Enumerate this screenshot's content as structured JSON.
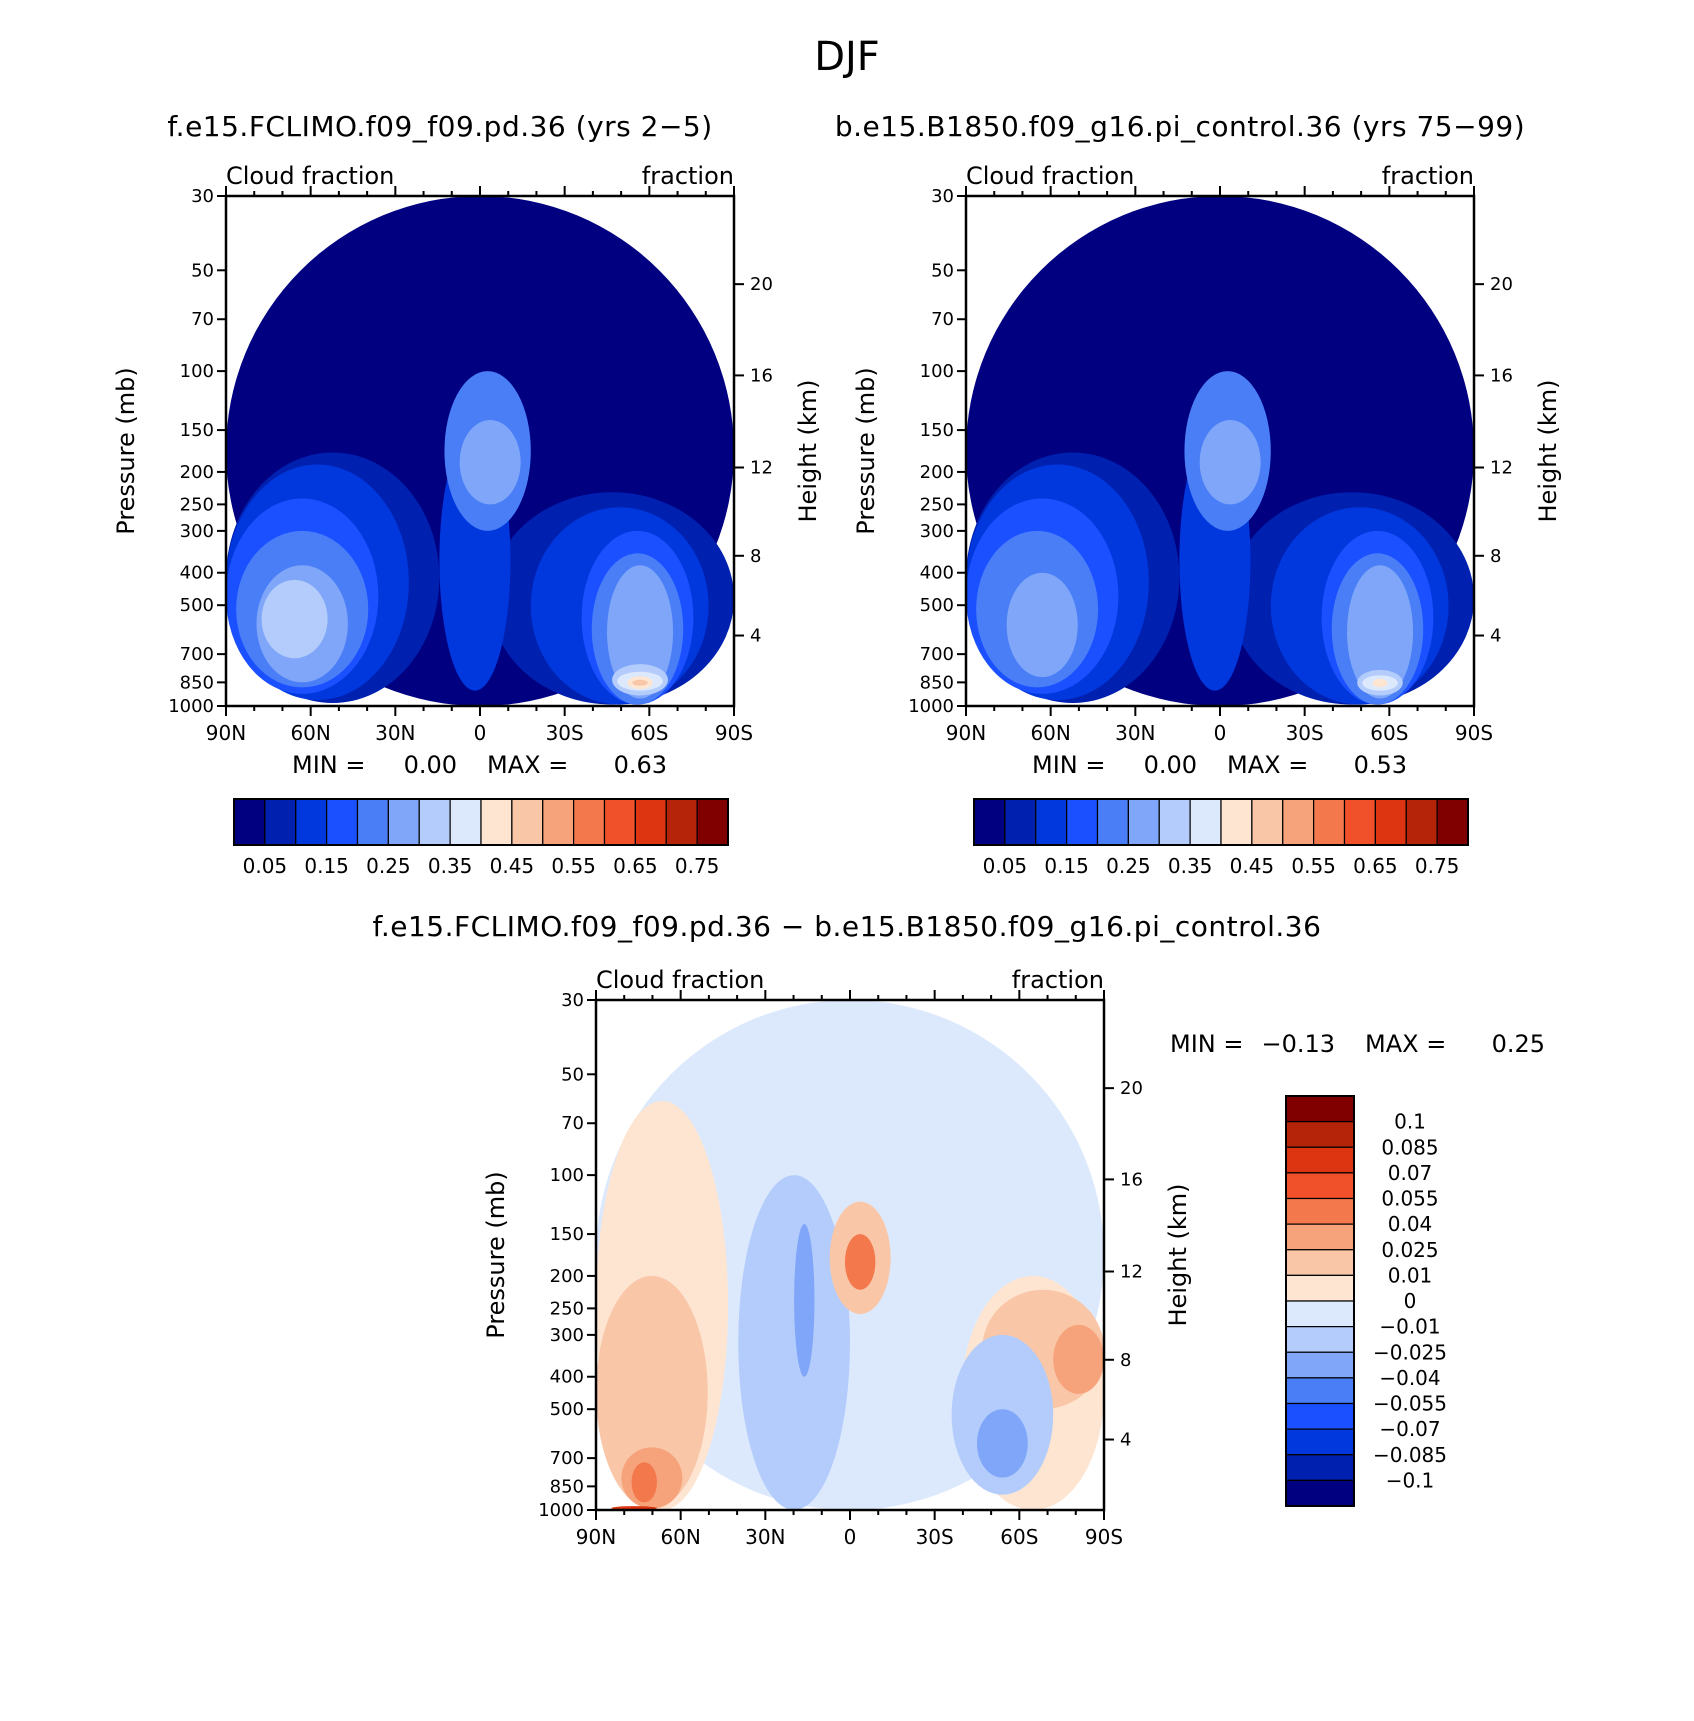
{
  "chart_data": {
    "type": "contour",
    "title": "DJF",
    "panels": [
      {
        "id": "left",
        "title": "f.e15.FCLIMO.f09_f09.pd.36 (yrs 2−5)",
        "left_label": "Cloud fraction",
        "right_label": "fraction",
        "ylabel": "Pressure (mb)",
        "ylabel_right": "Height (km)",
        "stats": {
          "min_label": "MIN =",
          "min": "0.00",
          "max_label": "MAX =",
          "max": "0.63"
        },
        "bands": [
          {
            "cat": 0,
            "p_top": 30,
            "p_bot": 1000,
            "lat0": 0,
            "lat1": 1
          },
          {
            "cat": 1,
            "p_top": 175,
            "p_bot": 980,
            "lat0": 0,
            "lat1": 0.42
          },
          {
            "cat": 1,
            "p_top": 230,
            "p_bot": 990,
            "lat0": 0.52,
            "lat1": 1
          },
          {
            "cat": 2,
            "p_top": 190,
            "p_bot": 960,
            "lat0": 0,
            "lat1": 0.36
          },
          {
            "cat": 2,
            "p_top": 150,
            "p_bot": 900,
            "lat0": 0.42,
            "lat1": 0.56
          },
          {
            "cat": 2,
            "p_top": 255,
            "p_bot": 990,
            "lat0": 0.6,
            "lat1": 0.95
          },
          {
            "cat": 3,
            "p_top": 240,
            "p_bot": 920,
            "lat0": 0,
            "lat1": 0.3
          },
          {
            "cat": 3,
            "p_top": 300,
            "p_bot": 990,
            "lat0": 0.7,
            "lat1": 0.92
          },
          {
            "cat": 4,
            "p_top": 300,
            "p_bot": 880,
            "lat0": 0.02,
            "lat1": 0.28
          },
          {
            "cat": 4,
            "p_top": 350,
            "p_bot": 990,
            "lat0": 0.72,
            "lat1": 0.9
          },
          {
            "cat": 5,
            "p_top": 380,
            "p_bot": 850,
            "lat0": 0.06,
            "lat1": 0.24
          },
          {
            "cat": 5,
            "p_top": 380,
            "p_bot": 950,
            "lat0": 0.75,
            "lat1": 0.88
          },
          {
            "cat": 6,
            "p_top": 420,
            "p_bot": 720,
            "lat0": 0.07,
            "lat1": 0.2
          },
          {
            "cat": 6,
            "p_top": 750,
            "p_bot": 930,
            "lat0": 0.76,
            "lat1": 0.87
          },
          {
            "cat": 7,
            "p_top": 790,
            "p_bot": 900,
            "lat0": 0.77,
            "lat1": 0.86
          },
          {
            "cat": 8,
            "p_top": 815,
            "p_bot": 890,
            "lat0": 0.79,
            "lat1": 0.84
          },
          {
            "cat": 9,
            "p_top": 835,
            "p_bot": 870,
            "lat0": 0.8,
            "lat1": 0.83
          },
          {
            "cat": 4,
            "p_top": 100,
            "p_bot": 300,
            "lat0": 0.43,
            "lat1": 0.6
          },
          {
            "cat": 5,
            "p_top": 140,
            "p_bot": 250,
            "lat0": 0.46,
            "lat1": 0.58
          }
        ]
      },
      {
        "id": "right",
        "title": "b.e15.B1850.f09_g16.pi_control.36 (yrs 75−99)",
        "left_label": "Cloud fraction",
        "right_label": "fraction",
        "ylabel": "Pressure (mb)",
        "ylabel_right": "Height (km)",
        "stats": {
          "min_label": "MIN =",
          "min": "0.00",
          "max_label": "MAX =",
          "max": "0.53"
        },
        "bands": [
          {
            "cat": 0,
            "p_top": 30,
            "p_bot": 1000,
            "lat0": 0,
            "lat1": 1
          },
          {
            "cat": 1,
            "p_top": 175,
            "p_bot": 980,
            "lat0": 0,
            "lat1": 0.42
          },
          {
            "cat": 1,
            "p_top": 230,
            "p_bot": 990,
            "lat0": 0.52,
            "lat1": 1
          },
          {
            "cat": 2,
            "p_top": 190,
            "p_bot": 960,
            "lat0": 0,
            "lat1": 0.36
          },
          {
            "cat": 2,
            "p_top": 150,
            "p_bot": 900,
            "lat0": 0.42,
            "lat1": 0.56
          },
          {
            "cat": 2,
            "p_top": 255,
            "p_bot": 990,
            "lat0": 0.6,
            "lat1": 0.95
          },
          {
            "cat": 3,
            "p_top": 240,
            "p_bot": 920,
            "lat0": 0,
            "lat1": 0.3
          },
          {
            "cat": 3,
            "p_top": 300,
            "p_bot": 990,
            "lat0": 0.7,
            "lat1": 0.92
          },
          {
            "cat": 4,
            "p_top": 300,
            "p_bot": 880,
            "lat0": 0.02,
            "lat1": 0.26
          },
          {
            "cat": 4,
            "p_top": 350,
            "p_bot": 990,
            "lat0": 0.72,
            "lat1": 0.9
          },
          {
            "cat": 5,
            "p_top": 400,
            "p_bot": 820,
            "lat0": 0.08,
            "lat1": 0.22
          },
          {
            "cat": 5,
            "p_top": 380,
            "p_bot": 950,
            "lat0": 0.75,
            "lat1": 0.88
          },
          {
            "cat": 6,
            "p_top": 780,
            "p_bot": 930,
            "lat0": 0.77,
            "lat1": 0.86
          },
          {
            "cat": 7,
            "p_top": 810,
            "p_bot": 900,
            "lat0": 0.78,
            "lat1": 0.85
          },
          {
            "cat": 8,
            "p_top": 830,
            "p_bot": 880,
            "lat0": 0.8,
            "lat1": 0.83
          },
          {
            "cat": 4,
            "p_top": 100,
            "p_bot": 300,
            "lat0": 0.43,
            "lat1": 0.6
          },
          {
            "cat": 5,
            "p_top": 140,
            "p_bot": 250,
            "lat0": 0.46,
            "lat1": 0.58
          }
        ]
      },
      {
        "id": "diff",
        "title": "f.e15.FCLIMO.f09_f09.pd.36 − b.e15.B1850.f09_g16.pi_control.36",
        "left_label": "Cloud fraction",
        "right_label": "fraction",
        "ylabel": "Pressure (mb)",
        "ylabel_right": "Height (km)",
        "stats": {
          "min_label": "MIN =",
          "min": "−0.13",
          "max_label": "MAX =",
          "max": "0.25"
        },
        "bands": [
          {
            "cat": 7,
            "p_top": 30,
            "p_bot": 1000,
            "lat0": 0,
            "lat1": 1
          },
          {
            "cat": 8,
            "p_top": 60,
            "p_bot": 1000,
            "lat0": 0,
            "lat1": 0.26
          },
          {
            "cat": 8,
            "p_top": 200,
            "p_bot": 1000,
            "lat0": 0.72,
            "lat1": 1
          },
          {
            "cat": 9,
            "p_top": 200,
            "p_bot": 990,
            "lat0": 0,
            "lat1": 0.22
          },
          {
            "cat": 9,
            "p_top": 220,
            "p_bot": 500,
            "lat0": 0.76,
            "lat1": 1
          },
          {
            "cat": 10,
            "p_top": 650,
            "p_bot": 990,
            "lat0": 0.05,
            "lat1": 0.17
          },
          {
            "cat": 10,
            "p_top": 280,
            "p_bot": 450,
            "lat0": 0.9,
            "lat1": 1
          },
          {
            "cat": 6,
            "p_top": 100,
            "p_bot": 1000,
            "lat0": 0.28,
            "lat1": 0.5
          },
          {
            "cat": 5,
            "p_top": 140,
            "p_bot": 400,
            "lat0": 0.39,
            "lat1": 0.43
          },
          {
            "cat": 6,
            "p_top": 300,
            "p_bot": 900,
            "lat0": 0.7,
            "lat1": 0.9
          },
          {
            "cat": 5,
            "p_top": 500,
            "p_bot": 800,
            "lat0": 0.75,
            "lat1": 0.85
          },
          {
            "cat": 9,
            "p_top": 120,
            "p_bot": 260,
            "lat0": 0.46,
            "lat1": 0.58
          },
          {
            "cat": 11,
            "p_top": 150,
            "p_bot": 220,
            "lat0": 0.49,
            "lat1": 0.55
          },
          {
            "cat": 11,
            "p_top": 720,
            "p_bot": 950,
            "lat0": 0.07,
            "lat1": 0.12
          },
          {
            "cat": 13,
            "p_top": 975,
            "p_bot": 1000,
            "lat0": 0.03,
            "lat1": 0.12
          }
        ]
      }
    ],
    "x_ticks": [
      "90N",
      "60N",
      "30N",
      "0",
      "30S",
      "60S",
      "90S"
    ],
    "p_ticks": [
      30,
      50,
      70,
      100,
      150,
      200,
      250,
      300,
      400,
      500,
      700,
      850,
      1000
    ],
    "p_tick_labels": [
      "30",
      "50",
      "70",
      "100",
      "150",
      "200",
      "250",
      "300",
      "400",
      "500",
      "700",
      "850",
      "1000"
    ],
    "height_ticks": [
      {
        "km": 20,
        "p": 55
      },
      {
        "km": 16,
        "p": 103
      },
      {
        "km": 12,
        "p": 194
      },
      {
        "km": 8,
        "p": 356
      },
      {
        "km": 4,
        "p": 616
      }
    ],
    "colorbar_top": {
      "orientation": "horizontal",
      "levels": [
        "0.05",
        "0.15",
        "0.25",
        "0.35",
        "0.45",
        "0.55",
        "0.65",
        "0.75"
      ],
      "colors": [
        "#000080",
        "#0020b0",
        "#0038dd",
        "#1a50ff",
        "#4a7ef7",
        "#7fa6f8",
        "#b3ccfb",
        "#dce9fd",
        "#fde5d2",
        "#f9c7a8",
        "#f6a27a",
        "#f3794d",
        "#f0502a",
        "#dd3412",
        "#b52308",
        "#800000"
      ]
    },
    "colorbar_diff": {
      "orientation": "vertical",
      "levels": [
        "0.1",
        "0.085",
        "0.07",
        "0.055",
        "0.04",
        "0.025",
        "0.01",
        "0",
        "−0.01",
        "−0.025",
        "−0.04",
        "−0.055",
        "−0.07",
        "−0.085",
        "−0.1"
      ],
      "colors_top_to_bottom": [
        "#800000",
        "#b52308",
        "#dd3412",
        "#f0502a",
        "#f3794d",
        "#f6a27a",
        "#f9c7a8",
        "#fde5d2",
        "#dce9fd",
        "#b3ccfb",
        "#7fa6f8",
        "#4a7ef7",
        "#1a50ff",
        "#0038dd",
        "#0020b0",
        "#000080"
      ]
    }
  }
}
